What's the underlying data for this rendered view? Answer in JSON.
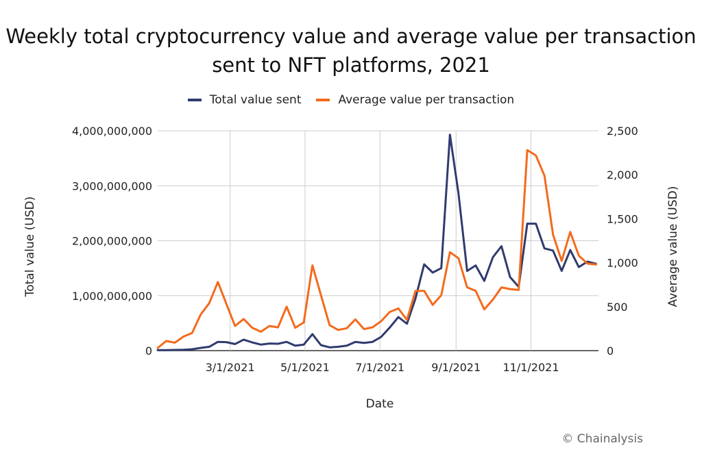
{
  "chart_data": {
    "type": "line",
    "title": "Weekly total cryptocurrency value and average value per transaction sent to NFT platforms, 2021",
    "xlabel": "Date",
    "ylabel": "Total value (USD)",
    "y2label": "Average value (USD)",
    "xlim": [
      "2021-01-01",
      "2021-12-26"
    ],
    "x_ticks": [
      "3/1/2021",
      "5/1/2021",
      "7/1/2021",
      "9/1/2021",
      "11/1/2021"
    ],
    "x_tick_dates": [
      "2021-03-01",
      "2021-05-01",
      "2021-07-01",
      "2021-09-01",
      "2021-11-01"
    ],
    "ylim": [
      0,
      4000000000
    ],
    "y_ticks": [
      "0",
      "1,000,000,000",
      "2,000,000,000",
      "3,000,000,000",
      "4,000,000,000"
    ],
    "y2lim": [
      0,
      2500
    ],
    "y2_ticks": [
      "0",
      "500",
      "1,000",
      "1,500",
      "2,000",
      "2,500"
    ],
    "grid": "vertical",
    "legend": "top-center",
    "dates": [
      "2021-01-01",
      "2021-01-08",
      "2021-01-15",
      "2021-01-22",
      "2021-01-29",
      "2021-02-05",
      "2021-02-12",
      "2021-02-19",
      "2021-02-26",
      "2021-03-05",
      "2021-03-12",
      "2021-03-19",
      "2021-03-26",
      "2021-04-02",
      "2021-04-09",
      "2021-04-16",
      "2021-04-23",
      "2021-04-30",
      "2021-05-07",
      "2021-05-14",
      "2021-05-21",
      "2021-05-28",
      "2021-06-04",
      "2021-06-11",
      "2021-06-18",
      "2021-06-25",
      "2021-07-02",
      "2021-07-09",
      "2021-07-16",
      "2021-07-23",
      "2021-07-30",
      "2021-08-06",
      "2021-08-13",
      "2021-08-20",
      "2021-08-27",
      "2021-09-03",
      "2021-09-10",
      "2021-09-17",
      "2021-09-24",
      "2021-10-01",
      "2021-10-08",
      "2021-10-15",
      "2021-10-22",
      "2021-10-29",
      "2021-11-05",
      "2021-11-12",
      "2021-11-19",
      "2021-11-26",
      "2021-12-03",
      "2021-12-10",
      "2021-12-17",
      "2021-12-24"
    ],
    "series": [
      {
        "name": "Total value sent",
        "axis": "left",
        "color": "#2f3b6e",
        "values": [
          10000000,
          10000000,
          12000000,
          15000000,
          25000000,
          50000000,
          70000000,
          160000000,
          155000000,
          120000000,
          200000000,
          150000000,
          110000000,
          130000000,
          125000000,
          160000000,
          90000000,
          110000000,
          300000000,
          100000000,
          60000000,
          70000000,
          90000000,
          160000000,
          140000000,
          160000000,
          250000000,
          420000000,
          610000000,
          490000000,
          950000000,
          1570000000,
          1420000000,
          1500000000,
          3930000000,
          2860000000,
          1450000000,
          1550000000,
          1270000000,
          1700000000,
          1900000000,
          1340000000,
          1160000000,
          2310000000,
          2310000000,
          1860000000,
          1820000000,
          1450000000,
          1830000000,
          1520000000,
          1620000000,
          1580000000
        ]
      },
      {
        "name": "Average value per transaction",
        "axis": "right",
        "color": "#f46a1c",
        "values": [
          30,
          110,
          90,
          160,
          200,
          410,
          540,
          780,
          530,
          280,
          360,
          260,
          215,
          280,
          265,
          500,
          260,
          320,
          970,
          630,
          290,
          235,
          255,
          355,
          245,
          265,
          335,
          440,
          480,
          350,
          680,
          680,
          520,
          630,
          1120,
          1050,
          720,
          680,
          470,
          580,
          720,
          700,
          690,
          2280,
          2220,
          1990,
          1320,
          1020,
          1350,
          1080,
          990,
          980
        ]
      }
    ]
  },
  "legend_items": [
    {
      "label": "Total value sent",
      "color": "#2f3b6e"
    },
    {
      "label": "Average value per transaction",
      "color": "#f46a1c"
    }
  ],
  "credit": "© Chainalysis"
}
